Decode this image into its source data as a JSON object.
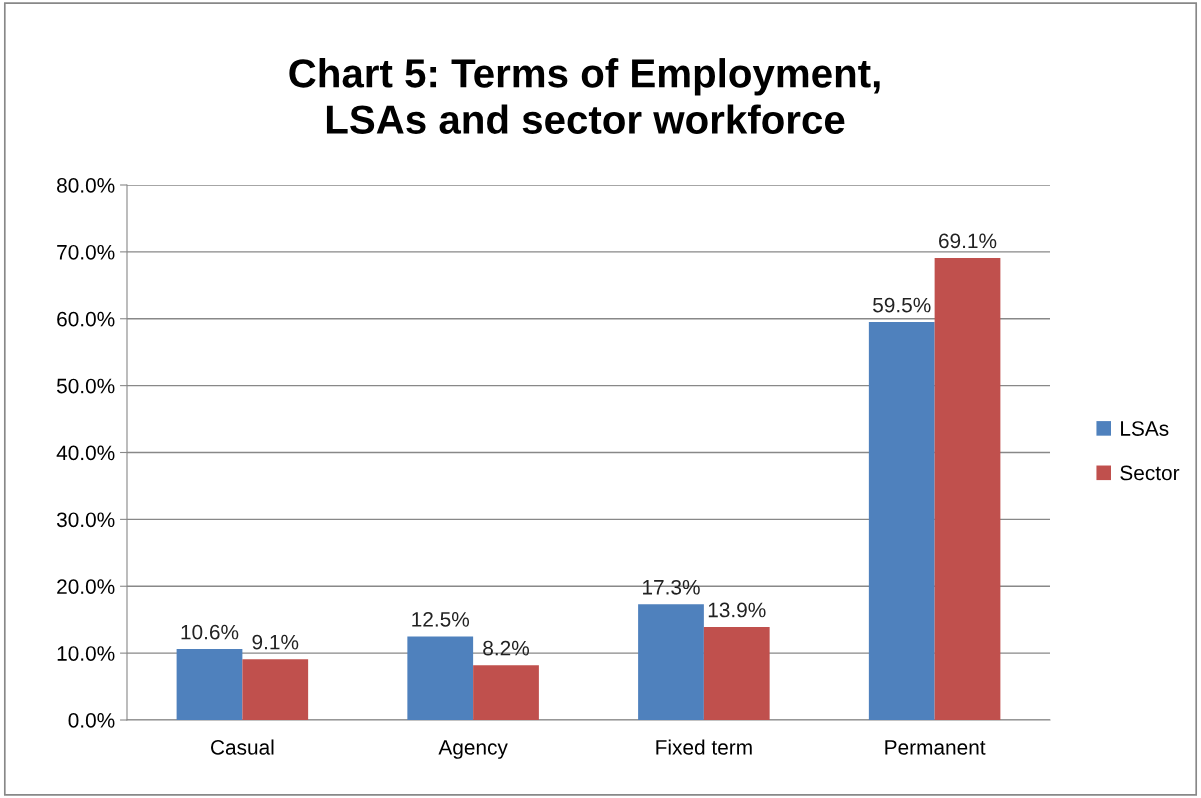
{
  "chart_data": {
    "type": "bar",
    "title": "Chart 5: Terms of Employment,\nLSAs and sector workforce",
    "categories": [
      "Casual",
      "Agency",
      "Fixed term",
      "Permanent"
    ],
    "series": [
      {
        "name": "LSAs",
        "color": "#4f81bd",
        "values": [
          10.6,
          12.5,
          17.3,
          59.5
        ],
        "value_labels": [
          "10.6%",
          "12.5%",
          "17.3%",
          "59.5%"
        ]
      },
      {
        "name": "Sector",
        "color": "#c0504d",
        "values": [
          9.1,
          8.2,
          13.9,
          69.1
        ],
        "value_labels": [
          "9.1%",
          "8.2%",
          "13.9%",
          "69.1%"
        ]
      }
    ],
    "ylim": [
      0,
      80
    ],
    "yticks": [
      {
        "value": 0,
        "label": "0.0%"
      },
      {
        "value": 10,
        "label": "10.0%"
      },
      {
        "value": 20,
        "label": "20.0%"
      },
      {
        "value": 30,
        "label": "30.0%"
      },
      {
        "value": 40,
        "label": "40.0%"
      },
      {
        "value": 50,
        "label": "50.0%"
      },
      {
        "value": 60,
        "label": "60.0%"
      },
      {
        "value": 70,
        "label": "70.0%"
      },
      {
        "value": 80,
        "label": "80.0%"
      }
    ],
    "grid": "y",
    "legend": "right"
  }
}
